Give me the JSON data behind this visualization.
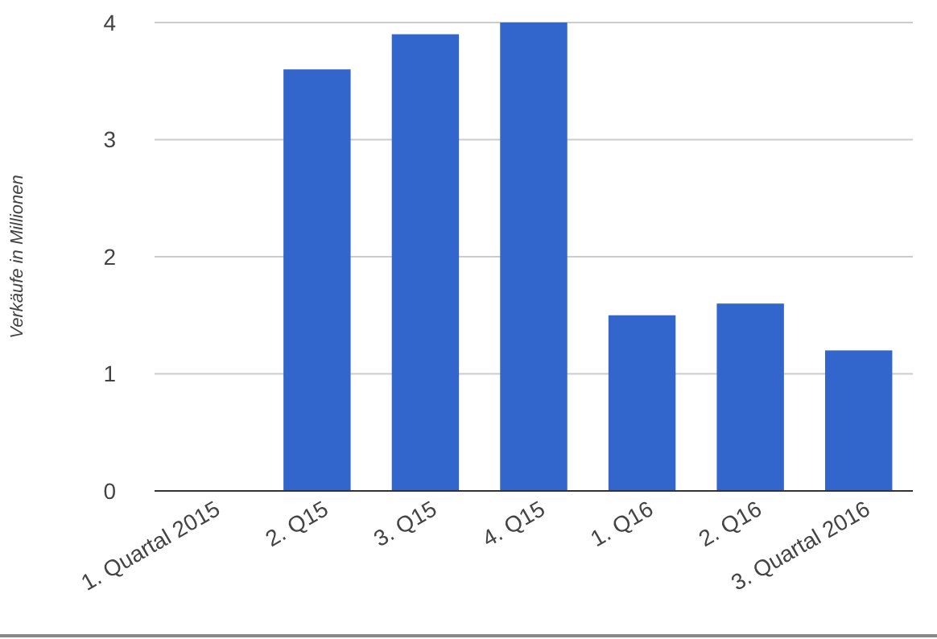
{
  "chart_data": {
    "type": "bar",
    "ylabel": "Verkäufe in Millionen",
    "categories": [
      "1. Quartal 2015",
      "2. Q15",
      "3. Q15",
      "4. Q15",
      "1. Q16",
      "2. Q16",
      "3. Quartal 2016"
    ],
    "values": [
      null,
      3.6,
      3.9,
      4.0,
      1.5,
      1.6,
      1.2
    ],
    "color": "#3366cc",
    "ylim": [
      0,
      4
    ],
    "yticks": [
      0,
      1,
      2,
      3,
      4
    ],
    "grid": "y"
  }
}
